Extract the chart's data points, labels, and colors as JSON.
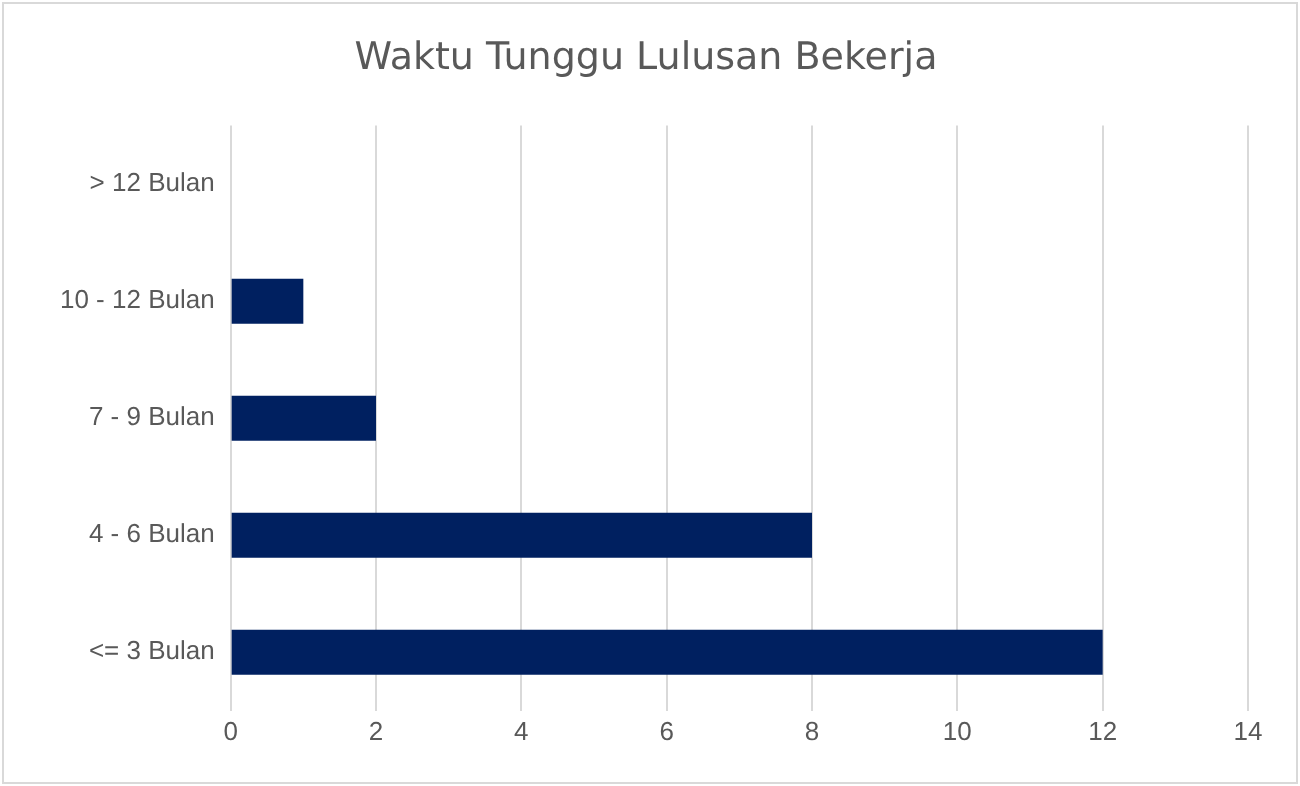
{
  "chart_data": {
    "type": "bar",
    "orientation": "horizontal",
    "title": "Waktu Tunggu Lulusan Bekerja",
    "categories": [
      "> 12 Bulan",
      "10 - 12 Bulan",
      "7 - 9 Bulan",
      "4 - 6 Bulan",
      "<= 3 Bulan"
    ],
    "values": [
      0,
      1,
      2,
      8,
      12
    ],
    "color": "#002060",
    "xlim": [
      0,
      14
    ],
    "xticks": [
      0,
      2,
      4,
      6,
      8,
      10,
      12,
      14
    ],
    "grid": "x",
    "legend": false
  }
}
